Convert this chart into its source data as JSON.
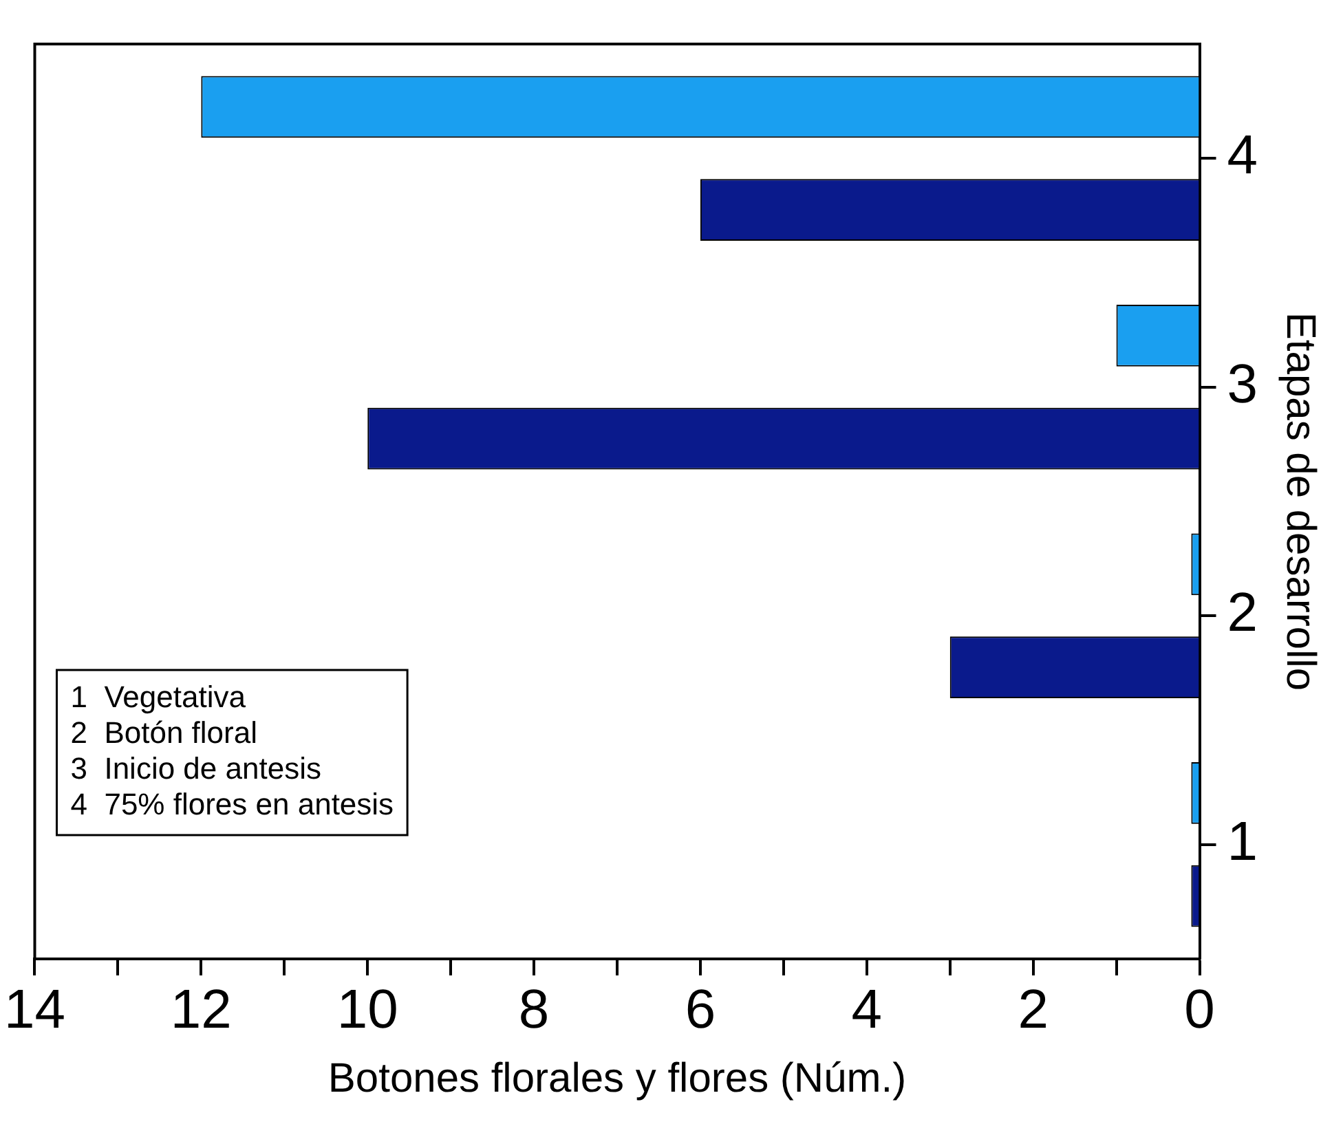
{
  "chart_data": {
    "type": "bar",
    "orientation": "horizontal",
    "categories": [
      "4",
      "3",
      "2",
      "1"
    ],
    "series": [
      {
        "color": "#0a1a8c",
        "values": [
          6,
          10,
          3,
          0.1
        ]
      },
      {
        "color": "#1a9ff0",
        "values": [
          12,
          1,
          0.1,
          0.1
        ]
      }
    ],
    "xlim": [
      14,
      0
    ],
    "xticks": [
      14,
      {
        "value": 13,
        "label": null
      },
      12,
      {
        "value": 11,
        "label": null
      },
      10,
      {
        "value": 9,
        "label": null
      },
      8,
      {
        "value": 7,
        "label": null
      },
      6,
      {
        "value": 5,
        "label": null
      },
      4,
      {
        "value": 3,
        "label": null
      },
      2,
      {
        "value": 1,
        "label": null
      },
      0
    ],
    "xlabel": "Botones florales y flores (Núm.)",
    "ylabel": "Etapas de desarrollo",
    "annotations": [
      "1  Vegetativa",
      "2  Botón floral",
      "3  Inicio de antesis",
      "4  75% flores en antesis"
    ],
    "grid": false,
    "legend": false
  }
}
